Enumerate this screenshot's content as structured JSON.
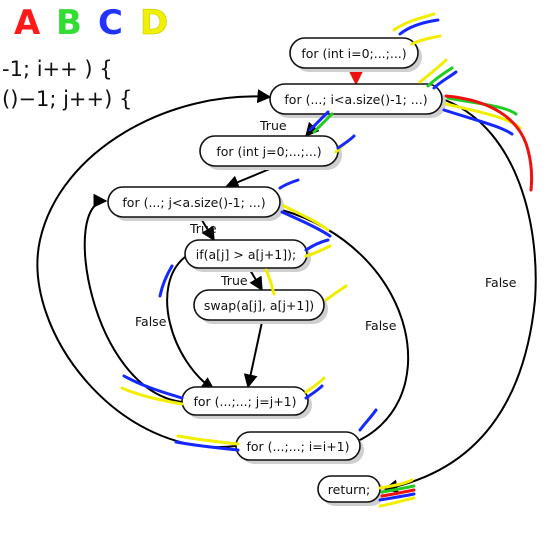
{
  "colors": {
    "letter_a": "#ff1a1a",
    "letter_b": "#33dd33",
    "letter_c": "#2233ff",
    "letter_d": "#f0f000",
    "yellow": "#f2ee00",
    "blue": "#1428ff",
    "green": "#22cc22",
    "red": "#ee1111"
  },
  "legend_letters": [
    "A",
    "B",
    "C",
    "D"
  ],
  "code": {
    "line1": "-1;  i++ )  {",
    "line2": "()−1;  j++)  {"
  },
  "nodes": {
    "outer_init": "for (int i=0;...;...)",
    "outer_cond": "for (...; i<a.size()-1; ...)",
    "inner_init": "for (int j=0;...;...)",
    "inner_cond": "for (...; j<a.size()-1; ...)",
    "if_compare": "if(a[j] > a[j+1]);",
    "swap": "swap(a[j], a[j+1])",
    "inner_step": "for (...;...; j=j+1)",
    "outer_step": "for (...;...; i=i+1)",
    "ret": "return;"
  },
  "edge_labels": {
    "true_outer": "True",
    "true_inner": "True",
    "true_if": "True",
    "false_if": "False",
    "false_inner": "False",
    "false_outer": "False"
  }
}
